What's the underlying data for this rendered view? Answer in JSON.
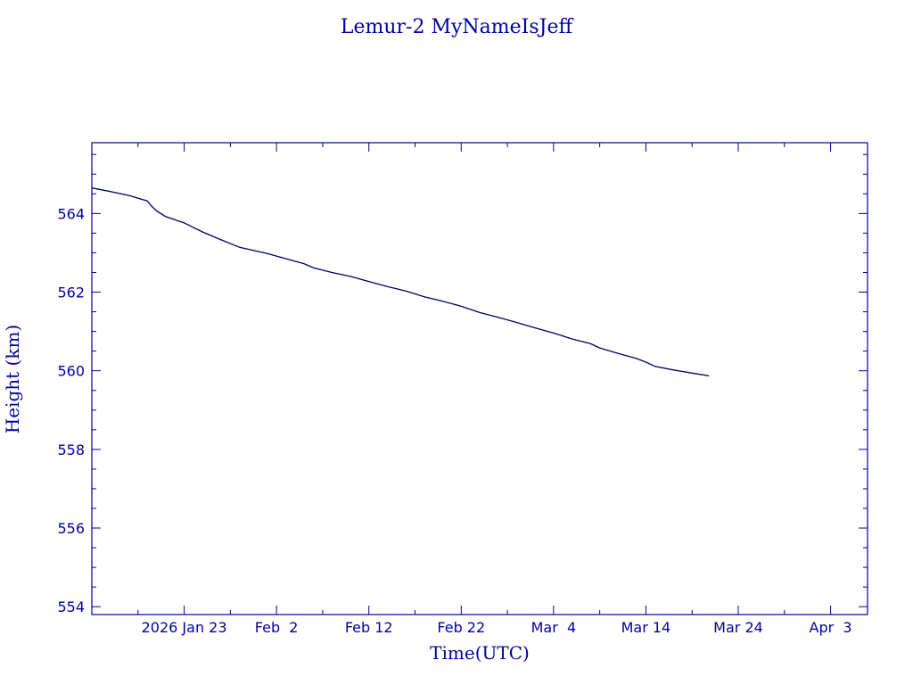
{
  "chart_data": {
    "type": "line",
    "title": "Lemur-2 MyNameIsJeff",
    "xlabel": "Time(UTC)",
    "ylabel": "Height (km)",
    "x_range": [
      "2026-01-13",
      "2026-04-07"
    ],
    "ylim": [
      553.8,
      565.8
    ],
    "x_tick_labels": [
      {
        "date": "2026-01-23",
        "label": "2026 Jan 23"
      },
      {
        "date": "2026-02-02",
        "label": "Feb  2"
      },
      {
        "date": "2026-02-12",
        "label": "Feb 12"
      },
      {
        "date": "2026-02-22",
        "label": "Feb 22"
      },
      {
        "date": "2026-03-04",
        "label": "Mar  4"
      },
      {
        "date": "2026-03-14",
        "label": "Mar 14"
      },
      {
        "date": "2026-03-24",
        "label": "Mar 24"
      },
      {
        "date": "2026-04-03",
        "label": "Apr  3"
      }
    ],
    "y_ticks": [
      554,
      556,
      558,
      560,
      562,
      564
    ],
    "y_minor_step": 0.5,
    "x_minor_step_days": 5,
    "grid": false,
    "series": [
      {
        "color": "#000060",
        "points": [
          {
            "x": "2026-01-13",
            "y": 564.65
          },
          {
            "x": "2026-01-15",
            "y": 564.56
          },
          {
            "x": "2026-01-17",
            "y": 564.46
          },
          {
            "x": "2026-01-19",
            "y": 564.32
          },
          {
            "x": "2026-01-19T12:00",
            "y": 564.18
          },
          {
            "x": "2026-01-20",
            "y": 564.07
          },
          {
            "x": "2026-01-21",
            "y": 563.92
          },
          {
            "x": "2026-01-23",
            "y": 563.76
          },
          {
            "x": "2026-01-25",
            "y": 563.53
          },
          {
            "x": "2026-01-27",
            "y": 563.33
          },
          {
            "x": "2026-01-29",
            "y": 563.14
          },
          {
            "x": "2026-02-01",
            "y": 562.98
          },
          {
            "x": "2026-02-03",
            "y": 562.85
          },
          {
            "x": "2026-02-05",
            "y": 562.72
          },
          {
            "x": "2026-02-06",
            "y": 562.62
          },
          {
            "x": "2026-02-08",
            "y": 562.5
          },
          {
            "x": "2026-02-10",
            "y": 562.4
          },
          {
            "x": "2026-02-12",
            "y": 562.27
          },
          {
            "x": "2026-02-14",
            "y": 562.14
          },
          {
            "x": "2026-02-16",
            "y": 562.03
          },
          {
            "x": "2026-02-18",
            "y": 561.88
          },
          {
            "x": "2026-02-20",
            "y": 561.77
          },
          {
            "x": "2026-02-22",
            "y": 561.64
          },
          {
            "x": "2026-02-24",
            "y": 561.48
          },
          {
            "x": "2026-02-26",
            "y": 561.36
          },
          {
            "x": "2026-02-28",
            "y": 561.23
          },
          {
            "x": "2026-03-02",
            "y": 561.09
          },
          {
            "x": "2026-03-04",
            "y": 560.96
          },
          {
            "x": "2026-03-06",
            "y": 560.81
          },
          {
            "x": "2026-03-08",
            "y": 560.69
          },
          {
            "x": "2026-03-09",
            "y": 560.58
          },
          {
            "x": "2026-03-11",
            "y": 560.44
          },
          {
            "x": "2026-03-13",
            "y": 560.31
          },
          {
            "x": "2026-03-14",
            "y": 560.22
          },
          {
            "x": "2026-03-15",
            "y": 560.11
          },
          {
            "x": "2026-03-17",
            "y": 560.02
          },
          {
            "x": "2026-03-19",
            "y": 559.94
          },
          {
            "x": "2026-03-20T20:00",
            "y": 559.87
          }
        ]
      }
    ]
  }
}
